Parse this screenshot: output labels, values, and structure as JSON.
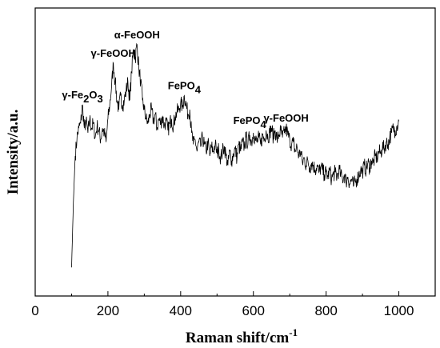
{
  "chart_data": {
    "type": "line",
    "xlabel_main": "Raman shift/cm",
    "xlabel_sup": "-1",
    "ylabel": "Intensity/a.u.",
    "xlim": [
      0,
      1100
    ],
    "ylim": [
      0,
      1
    ],
    "x_ticks": [
      0,
      200,
      400,
      600,
      800,
      1000
    ],
    "y_ticks_labeled": false,
    "grid": false,
    "line_color": "#000000",
    "series": [
      {
        "values_x": [
          100,
          105,
          110,
          115,
          120,
          125,
          130,
          135,
          140,
          145,
          150,
          155,
          160,
          165,
          170,
          175,
          180,
          185,
          190,
          195,
          200,
          205,
          210,
          215,
          220,
          225,
          230,
          235,
          240,
          245,
          250,
          255,
          260,
          265,
          270,
          275,
          280,
          285,
          290,
          295,
          300,
          305,
          310,
          315,
          320,
          325,
          330,
          335,
          340,
          345,
          350,
          355,
          360,
          365,
          370,
          375,
          380,
          385,
          390,
          395,
          400,
          405,
          410,
          415,
          420,
          425,
          430,
          435,
          440,
          445,
          450,
          455,
          460,
          465,
          470,
          475,
          480,
          485,
          490,
          495,
          500,
          505,
          510,
          515,
          520,
          525,
          530,
          535,
          540,
          545,
          550,
          555,
          560,
          565,
          570,
          575,
          580,
          585,
          590,
          595,
          600,
          605,
          610,
          615,
          620,
          625,
          630,
          635,
          640,
          645,
          650,
          655,
          660,
          665,
          670,
          675,
          680,
          685,
          690,
          695,
          700,
          705,
          710,
          715,
          720,
          725,
          730,
          735,
          740,
          745,
          750,
          755,
          760,
          765,
          770,
          775,
          780,
          785,
          790,
          795,
          800,
          805,
          810,
          815,
          820,
          825,
          830,
          835,
          840,
          845,
          850,
          855,
          860,
          865,
          870,
          875,
          880,
          885,
          890,
          895,
          900,
          905,
          910,
          915,
          920,
          925,
          930,
          935,
          940,
          945,
          950,
          955,
          960,
          965,
          970,
          975,
          980,
          985,
          990,
          995,
          1000
        ],
        "values_y": [
          0.02,
          0.3,
          0.5,
          0.58,
          0.62,
          0.64,
          0.72,
          0.62,
          0.65,
          0.6,
          0.66,
          0.62,
          0.64,
          0.58,
          0.63,
          0.61,
          0.57,
          0.62,
          0.6,
          0.56,
          0.66,
          0.72,
          0.8,
          0.9,
          0.82,
          0.74,
          0.7,
          0.76,
          0.72,
          0.74,
          0.78,
          0.82,
          0.74,
          0.86,
          0.96,
          0.92,
          0.98,
          0.88,
          0.82,
          0.74,
          0.7,
          0.66,
          0.64,
          0.68,
          0.7,
          0.65,
          0.68,
          0.62,
          0.66,
          0.64,
          0.67,
          0.63,
          0.65,
          0.61,
          0.64,
          0.66,
          0.63,
          0.67,
          0.69,
          0.7,
          0.73,
          0.71,
          0.76,
          0.72,
          0.68,
          0.7,
          0.6,
          0.55,
          0.57,
          0.52,
          0.56,
          0.54,
          0.58,
          0.55,
          0.52,
          0.56,
          0.5,
          0.54,
          0.52,
          0.55,
          0.51,
          0.53,
          0.49,
          0.52,
          0.54,
          0.5,
          0.46,
          0.52,
          0.48,
          0.51,
          0.53,
          0.49,
          0.55,
          0.52,
          0.56,
          0.54,
          0.58,
          0.55,
          0.59,
          0.56,
          0.6,
          0.57,
          0.56,
          0.58,
          0.55,
          0.59,
          0.57,
          0.61,
          0.58,
          0.6,
          0.62,
          0.58,
          0.61,
          0.57,
          0.59,
          0.61,
          0.58,
          0.6,
          0.62,
          0.59,
          0.57,
          0.55,
          0.56,
          0.52,
          0.54,
          0.5,
          0.52,
          0.47,
          0.49,
          0.46,
          0.48,
          0.45,
          0.47,
          0.46,
          0.44,
          0.46,
          0.43,
          0.45,
          0.44,
          0.42,
          0.43,
          0.41,
          0.44,
          0.4,
          0.42,
          0.43,
          0.41,
          0.44,
          0.42,
          0.4,
          0.42,
          0.39,
          0.41,
          0.38,
          0.4,
          0.37,
          0.39,
          0.4,
          0.42,
          0.44,
          0.43,
          0.46,
          0.44,
          0.47,
          0.45,
          0.48,
          0.47,
          0.5,
          0.49,
          0.52,
          0.51,
          0.54,
          0.53,
          0.56,
          0.55,
          0.58,
          0.6,
          0.62,
          0.61,
          0.63,
          0.65
        ]
      }
    ],
    "annotations": [
      {
        "main": "γ-Fe",
        "sub1": "2",
        "mid": "O",
        "sub2": "3",
        "x": 130,
        "y": 0.72
      },
      {
        "main": "γ-FeOOH",
        "x": 215,
        "y": 0.9
      },
      {
        "main": "α-FeOOH",
        "x": 280,
        "y": 0.98
      },
      {
        "main": "FePO",
        "sub1": "4",
        "x": 410,
        "y": 0.76
      },
      {
        "main": "FePO",
        "sub1": "4",
        "x": 590,
        "y": 0.61
      },
      {
        "main": "γ-FeOOH",
        "x": 690,
        "y": 0.62
      }
    ]
  }
}
